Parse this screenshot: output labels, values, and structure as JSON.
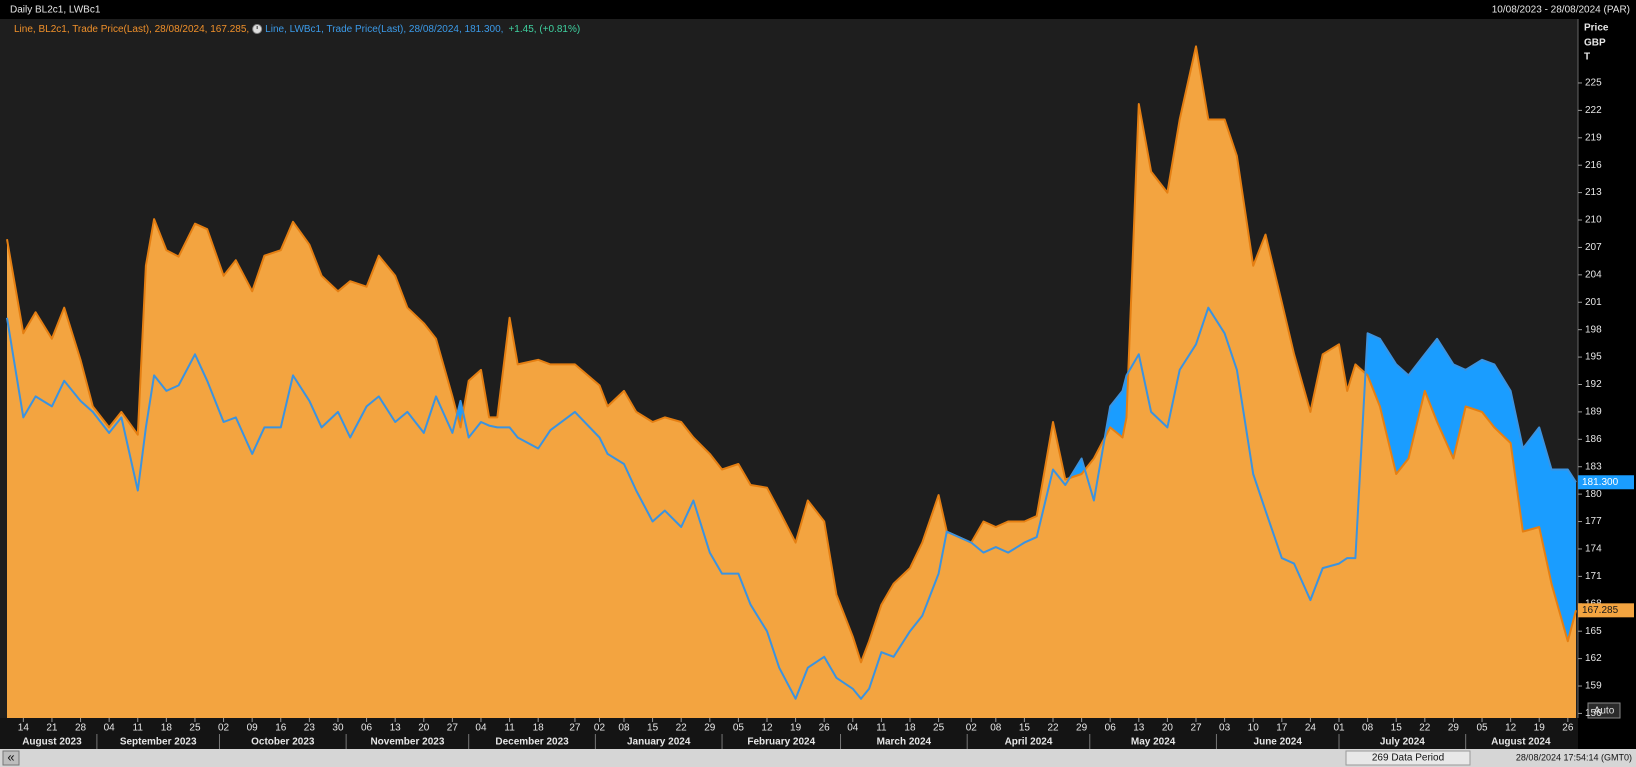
{
  "chart_data": {
    "type": "area",
    "title": "Daily BL2c1, LWBc1",
    "subtitle": "10/08/2023 - 28/08/2024 (PAR)",
    "y_axis_label": [
      "Price",
      "GBP",
      "T"
    ],
    "change_label": "+1.45, (+0.81%)",
    "auto_button": "Auto",
    "nav_button": "«",
    "data_period": "269 Data Period",
    "timestamp": "28/08/2024 17:54:14 (GMT0)",
    "grid": false,
    "xlim": [
      "2023-08-10",
      "2024-08-28"
    ],
    "ylim": [
      155.5,
      232
    ],
    "yticks": [
      156,
      159,
      162,
      165,
      168,
      171,
      174,
      177,
      180,
      183,
      186,
      189,
      192,
      195,
      198,
      201,
      204,
      207,
      210,
      213,
      216,
      219,
      222,
      225
    ],
    "x": [
      "2023-08-10",
      "2023-08-14",
      "2023-08-17",
      "2023-08-21",
      "2023-08-24",
      "2023-08-28",
      "2023-08-31",
      "2023-09-04",
      "2023-09-07",
      "2023-09-11",
      "2023-09-13",
      "2023-09-15",
      "2023-09-18",
      "2023-09-21",
      "2023-09-25",
      "2023-09-28",
      "2023-10-02",
      "2023-10-05",
      "2023-10-09",
      "2023-10-12",
      "2023-10-16",
      "2023-10-19",
      "2023-10-23",
      "2023-10-26",
      "2023-10-30",
      "2023-11-02",
      "2023-11-06",
      "2023-11-09",
      "2023-11-13",
      "2023-11-16",
      "2023-11-20",
      "2023-11-23",
      "2023-11-27",
      "2023-11-29",
      "2023-12-01",
      "2023-12-04",
      "2023-12-06",
      "2023-12-08",
      "2023-12-11",
      "2023-12-13",
      "2023-12-18",
      "2023-12-21",
      "2023-12-27",
      "2024-01-02",
      "2024-01-04",
      "2024-01-08",
      "2024-01-11",
      "2024-01-15",
      "2024-01-18",
      "2024-01-22",
      "2024-01-25",
      "2024-01-29",
      "2024-02-01",
      "2024-02-05",
      "2024-02-08",
      "2024-02-12",
      "2024-02-15",
      "2024-02-19",
      "2024-02-22",
      "2024-02-26",
      "2024-02-29",
      "2024-03-04",
      "2024-03-06",
      "2024-03-08",
      "2024-03-11",
      "2024-03-14",
      "2024-03-18",
      "2024-03-21",
      "2024-03-25",
      "2024-03-27",
      "2024-04-02",
      "2024-04-05",
      "2024-04-08",
      "2024-04-11",
      "2024-04-15",
      "2024-04-18",
      "2024-04-22",
      "2024-04-25",
      "2024-04-29",
      "2024-05-02",
      "2024-05-06",
      "2024-05-09",
      "2024-05-10",
      "2024-05-13",
      "2024-05-16",
      "2024-05-20",
      "2024-05-23",
      "2024-05-27",
      "2024-05-30",
      "2024-06-03",
      "2024-06-06",
      "2024-06-10",
      "2024-06-13",
      "2024-06-17",
      "2024-06-20",
      "2024-06-24",
      "2024-06-27",
      "2024-07-01",
      "2024-07-03",
      "2024-07-05",
      "2024-07-08",
      "2024-07-11",
      "2024-07-15",
      "2024-07-18",
      "2024-07-22",
      "2024-07-25",
      "2024-07-29",
      "2024-08-01",
      "2024-08-05",
      "2024-08-08",
      "2024-08-12",
      "2024-08-15",
      "2024-08-19",
      "2024-08-22",
      "2024-08-26",
      "2024-08-28"
    ],
    "series": [
      {
        "name": "Line, LWBc1, Trade Price(Last), 28/08/2024, 181.300,",
        "color": "#3b93e0",
        "fill_color": "#1a9dff",
        "last_label": "181.300",
        "values": [
          199.3,
          188.4,
          190.7,
          189.6,
          192.4,
          190.2,
          189,
          186.7,
          188.4,
          180.4,
          187.3,
          193,
          191.3,
          191.9,
          195.3,
          192.4,
          187.9,
          188.4,
          184.4,
          187.3,
          187.3,
          193,
          190.2,
          187.3,
          189,
          186.2,
          189.6,
          190.7,
          187.9,
          189,
          186.7,
          190.7,
          186.7,
          190.2,
          186.2,
          187.9,
          187.5,
          187.3,
          187.3,
          186.2,
          185,
          187,
          189,
          186.2,
          184.4,
          183.3,
          180.4,
          177,
          178.2,
          176.4,
          179.3,
          173.6,
          171.3,
          171.3,
          167.9,
          165,
          161,
          157.6,
          161,
          162.2,
          159.9,
          158.7,
          157.6,
          158.7,
          162.7,
          162.2,
          165,
          166.7,
          171.3,
          175.9,
          174.7,
          173.6,
          174.2,
          173.6,
          174.7,
          175.3,
          182.7,
          181,
          183.9,
          179.3,
          189.6,
          191.3,
          193,
          195.3,
          189,
          187.3,
          193.6,
          196.4,
          200.4,
          197.6,
          193.6,
          182.2,
          178.2,
          173,
          172.4,
          168.4,
          171.9,
          172.4,
          173,
          173,
          197.6,
          197,
          194.2,
          193,
          195.3,
          197,
          194.2,
          193.6,
          194.7,
          194.2,
          191.3,
          185,
          187.3,
          182.7,
          182.7,
          181.3
        ]
      },
      {
        "name": "Line, BL2c1, Trade Price(Last), 28/08/2024, 167.285,",
        "color": "#e57f12",
        "fill_color": "#f3a440",
        "last_label": "167.285",
        "values": [
          207.9,
          197.6,
          199.9,
          197,
          200.4,
          194.7,
          189.6,
          187.3,
          189,
          186.5,
          205,
          210.1,
          206.7,
          206,
          209.6,
          209,
          203.9,
          205.6,
          202.2,
          206.1,
          206.7,
          209.8,
          207.3,
          203.9,
          202.2,
          203.3,
          202.7,
          206.1,
          203.9,
          200.4,
          198.7,
          197,
          190.7,
          187.3,
          192.4,
          193.6,
          188.4,
          188.4,
          199.3,
          194.2,
          194.7,
          194.2,
          194.2,
          191.9,
          189.6,
          191.3,
          189,
          187.9,
          188.4,
          187.9,
          186.2,
          184.4,
          182.7,
          183.3,
          181,
          180.7,
          178.2,
          174.7,
          179.3,
          177,
          169,
          164.4,
          161.6,
          163.9,
          167.9,
          170.2,
          171.9,
          174.7,
          179.9,
          175.9,
          174.7,
          177,
          176.4,
          177,
          177,
          177.6,
          187.9,
          181.6,
          182.2,
          183.9,
          187.3,
          186.2,
          188.4,
          222.7,
          215.3,
          213,
          221,
          229,
          221,
          221,
          217,
          205,
          208.4,
          201,
          195.3,
          189,
          195.3,
          196.4,
          191.3,
          194.2,
          193,
          189.6,
          182.2,
          183.9,
          191.3,
          187.9,
          183.9,
          189.6,
          189,
          187.3,
          185.6,
          175.9,
          176.4,
          170.2,
          163.9,
          167.285
        ]
      }
    ],
    "xticks": [
      {
        "value": "2023-08-14",
        "label": "14"
      },
      {
        "value": "2023-08-21",
        "label": "21"
      },
      {
        "value": "2023-08-28",
        "label": "28"
      },
      {
        "value": "2023-09-04",
        "label": "04"
      },
      {
        "value": "2023-09-11",
        "label": "11"
      },
      {
        "value": "2023-09-18",
        "label": "18"
      },
      {
        "value": "2023-09-25",
        "label": "25"
      },
      {
        "value": "2023-10-02",
        "label": "02"
      },
      {
        "value": "2023-10-09",
        "label": "09"
      },
      {
        "value": "2023-10-16",
        "label": "16"
      },
      {
        "value": "2023-10-23",
        "label": "23"
      },
      {
        "value": "2023-10-30",
        "label": "30"
      },
      {
        "value": "2023-11-06",
        "label": "06"
      },
      {
        "value": "2023-11-13",
        "label": "13"
      },
      {
        "value": "2023-11-20",
        "label": "20"
      },
      {
        "value": "2023-11-27",
        "label": "27"
      },
      {
        "value": "2023-12-04",
        "label": "04"
      },
      {
        "value": "2023-12-11",
        "label": "11"
      },
      {
        "value": "2023-12-18",
        "label": "18"
      },
      {
        "value": "2023-12-27",
        "label": "27"
      },
      {
        "value": "2024-01-02",
        "label": "02"
      },
      {
        "value": "2024-01-08",
        "label": "08"
      },
      {
        "value": "2024-01-15",
        "label": "15"
      },
      {
        "value": "2024-01-22",
        "label": "22"
      },
      {
        "value": "2024-01-29",
        "label": "29"
      },
      {
        "value": "2024-02-05",
        "label": "05"
      },
      {
        "value": "2024-02-12",
        "label": "12"
      },
      {
        "value": "2024-02-19",
        "label": "19"
      },
      {
        "value": "2024-02-26",
        "label": "26"
      },
      {
        "value": "2024-03-04",
        "label": "04"
      },
      {
        "value": "2024-03-11",
        "label": "11"
      },
      {
        "value": "2024-03-18",
        "label": "18"
      },
      {
        "value": "2024-03-25",
        "label": "25"
      },
      {
        "value": "2024-04-02",
        "label": "02"
      },
      {
        "value": "2024-04-08",
        "label": "08"
      },
      {
        "value": "2024-04-15",
        "label": "15"
      },
      {
        "value": "2024-04-22",
        "label": "22"
      },
      {
        "value": "2024-04-29",
        "label": "29"
      },
      {
        "value": "2024-05-06",
        "label": "06"
      },
      {
        "value": "2024-05-13",
        "label": "13"
      },
      {
        "value": "2024-05-20",
        "label": "20"
      },
      {
        "value": "2024-05-27",
        "label": "27"
      },
      {
        "value": "2024-06-03",
        "label": "03"
      },
      {
        "value": "2024-06-10",
        "label": "10"
      },
      {
        "value": "2024-06-17",
        "label": "17"
      },
      {
        "value": "2024-06-24",
        "label": "24"
      },
      {
        "value": "2024-07-01",
        "label": "01"
      },
      {
        "value": "2024-07-08",
        "label": "08"
      },
      {
        "value": "2024-07-15",
        "label": "15"
      },
      {
        "value": "2024-07-22",
        "label": "22"
      },
      {
        "value": "2024-07-29",
        "label": "29"
      },
      {
        "value": "2024-08-05",
        "label": "05"
      },
      {
        "value": "2024-08-12",
        "label": "12"
      },
      {
        "value": "2024-08-19",
        "label": "19"
      },
      {
        "value": "2024-08-26",
        "label": "26"
      }
    ],
    "month_ticks": [
      {
        "value": "2023-08",
        "label": "August 2023"
      },
      {
        "value": "2023-09",
        "label": "September 2023"
      },
      {
        "value": "2023-10",
        "label": "October 2023"
      },
      {
        "value": "2023-11",
        "label": "November 2023"
      },
      {
        "value": "2023-12",
        "label": "December 2023"
      },
      {
        "value": "2024-01",
        "label": "January 2024"
      },
      {
        "value": "2024-02",
        "label": "February 2024"
      },
      {
        "value": "2024-03",
        "label": "March 2024"
      },
      {
        "value": "2024-04",
        "label": "April 2024"
      },
      {
        "value": "2024-05",
        "label": "May 2024"
      },
      {
        "value": "2024-06",
        "label": "June 2024"
      },
      {
        "value": "2024-07",
        "label": "July 2024"
      },
      {
        "value": "2024-08",
        "label": "August 2024"
      }
    ]
  }
}
